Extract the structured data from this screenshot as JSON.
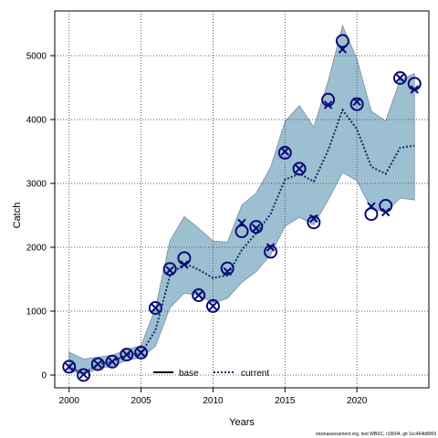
{
  "chart_data": {
    "type": "line",
    "xlabel": "Years",
    "ylabel": "Catch",
    "xlim": [
      1999,
      2025
    ],
    "ylim": [
      -200,
      5700
    ],
    "xticks": [
      2000,
      2005,
      2010,
      2015,
      2020
    ],
    "yticks": [
      0,
      1000,
      2000,
      3000,
      4000,
      5000
    ],
    "grid": true,
    "legend": {
      "position": "bottom-center",
      "entries": [
        "base",
        "current"
      ]
    },
    "colors": {
      "band": "#9dbfd2",
      "band_edge": "#7f8f99",
      "marker": "#0a0a78",
      "current_line": "#003366",
      "base_line": "#000000"
    },
    "x": [
      2000,
      2001,
      2002,
      2003,
      2004,
      2005,
      2006,
      2007,
      2008,
      2009,
      2010,
      2011,
      2012,
      2013,
      2014,
      2015,
      2016,
      2017,
      2018,
      2019,
      2020,
      2021,
      2022,
      2023,
      2024
    ],
    "series": [
      {
        "name": "current",
        "style": "dotted-line",
        "values": [
          130,
          20,
          170,
          210,
          320,
          340,
          700,
          1550,
          1750,
          1650,
          1520,
          1560,
          1960,
          2220,
          2520,
          3060,
          3150,
          3030,
          3520,
          4150,
          3850,
          3260,
          3150,
          3560,
          3590
        ]
      },
      {
        "name": "",
        "style": "band",
        "lower": [
          80,
          0,
          100,
          140,
          230,
          270,
          450,
          1050,
          1280,
          1250,
          1130,
          1200,
          1450,
          1620,
          1880,
          2330,
          2470,
          2350,
          2740,
          3170,
          3040,
          2600,
          2550,
          2770,
          2740
        ],
        "upper": [
          360,
          250,
          280,
          310,
          400,
          460,
          1050,
          2100,
          2480,
          2300,
          2100,
          2080,
          2660,
          2850,
          3250,
          3970,
          4220,
          3880,
          4600,
          5470,
          4950,
          4130,
          3980,
          4620,
          4720
        ]
      },
      {
        "name": "",
        "style": "circle",
        "values": [
          130,
          0,
          170,
          210,
          320,
          350,
          1050,
          1660,
          1830,
          1250,
          1080,
          1670,
          2250,
          2320,
          1930,
          3480,
          3230,
          2390,
          4310,
          5230,
          4240,
          2520,
          2650,
          4650,
          4560
        ]
      },
      {
        "name": "",
        "style": "cross",
        "values": [
          130,
          10,
          170,
          210,
          320,
          350,
          1050,
          1640,
          1730,
          1250,
          1080,
          1620,
          2380,
          2300,
          2000,
          3500,
          3230,
          2450,
          4230,
          5100,
          4280,
          2640,
          2550,
          4650,
          4470
        ]
      }
    ]
  },
  "footer": "stockassessment.org, test WBSC, r19604, git 1cc464b8069"
}
